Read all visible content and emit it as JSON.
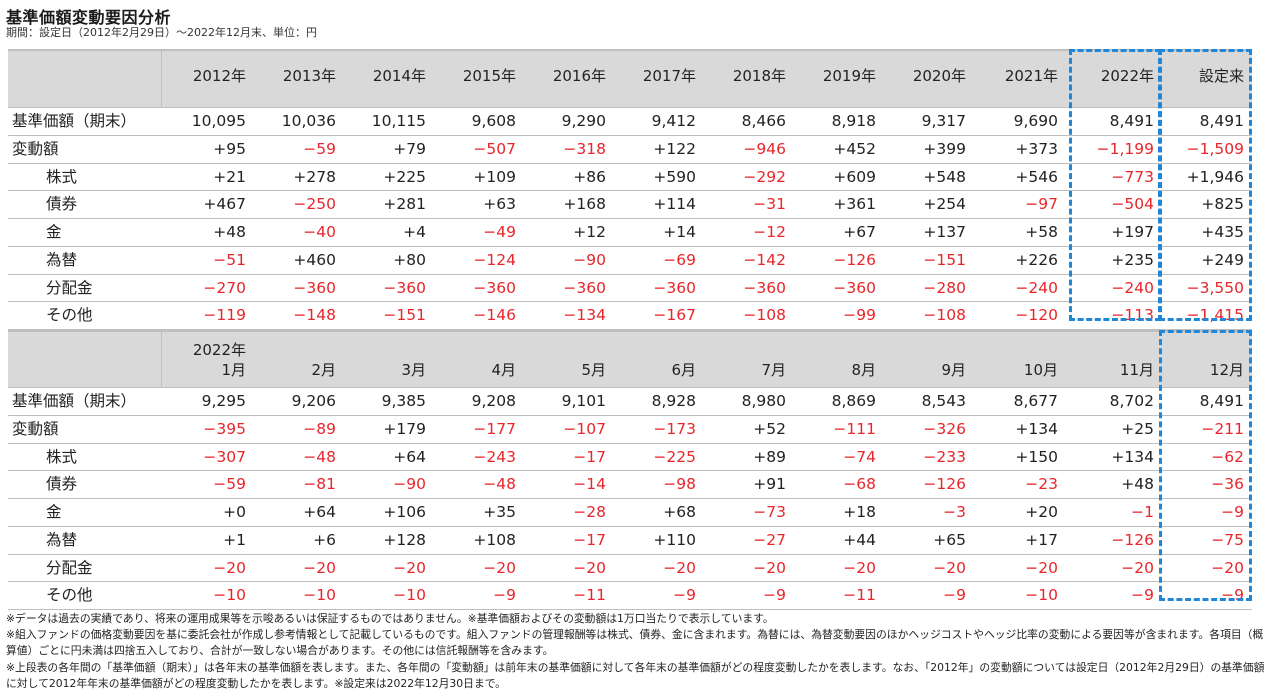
{
  "title": "基準価額変動要因分析",
  "subtitle": "期間：設定日（2012年2月29日）〜2022年12月末、単位：円",
  "annual": {
    "columns": [
      "2012年",
      "2013年",
      "2014年",
      "2015年",
      "2016年",
      "2017年",
      "2018年",
      "2019年",
      "2020年",
      "2021年",
      "2022年",
      "設定来"
    ],
    "rows": [
      {
        "label": "基準価額（期末）",
        "indent": false,
        "values": [
          "10,095",
          "10,036",
          "10,115",
          "9,608",
          "9,290",
          "9,412",
          "8,466",
          "8,918",
          "9,317",
          "9,690",
          "8,491",
          "8,491"
        ]
      },
      {
        "label": "変動額",
        "indent": false,
        "values": [
          "+95",
          "−59",
          "+79",
          "−507",
          "−318",
          "+122",
          "−946",
          "+452",
          "+399",
          "+373",
          "−1,199",
          "−1,509"
        ]
      },
      {
        "label": "株式",
        "indent": true,
        "values": [
          "+21",
          "+278",
          "+225",
          "+109",
          "+86",
          "+590",
          "−292",
          "+609",
          "+548",
          "+546",
          "−773",
          "+1,946"
        ]
      },
      {
        "label": "債券",
        "indent": true,
        "values": [
          "+467",
          "−250",
          "+281",
          "+63",
          "+168",
          "+114",
          "−31",
          "+361",
          "+254",
          "−97",
          "−504",
          "+825"
        ]
      },
      {
        "label": "金",
        "indent": true,
        "values": [
          "+48",
          "−40",
          "+4",
          "−49",
          "+12",
          "+14",
          "−12",
          "+67",
          "+137",
          "+58",
          "+197",
          "+435"
        ]
      },
      {
        "label": "為替",
        "indent": true,
        "values": [
          "−51",
          "+460",
          "+80",
          "−124",
          "−90",
          "−69",
          "−142",
          "−126",
          "−151",
          "+226",
          "+235",
          "+249"
        ]
      },
      {
        "label": "分配金",
        "indent": true,
        "values": [
          "−270",
          "−360",
          "−360",
          "−360",
          "−360",
          "−360",
          "−360",
          "−360",
          "−280",
          "−240",
          "−240",
          "−3,550"
        ]
      },
      {
        "label": "その他",
        "indent": true,
        "values": [
          "−119",
          "−148",
          "−151",
          "−146",
          "−134",
          "−167",
          "−108",
          "−99",
          "−108",
          "−120",
          "−113",
          "−1,415"
        ]
      }
    ]
  },
  "monthly": {
    "year_label": "2022年",
    "columns": [
      "1月",
      "2月",
      "3月",
      "4月",
      "5月",
      "6月",
      "7月",
      "8月",
      "9月",
      "10月",
      "11月",
      "12月"
    ],
    "rows": [
      {
        "label": "基準価額（期末）",
        "indent": false,
        "values": [
          "9,295",
          "9,206",
          "9,385",
          "9,208",
          "9,101",
          "8,928",
          "8,980",
          "8,869",
          "8,543",
          "8,677",
          "8,702",
          "8,491"
        ]
      },
      {
        "label": "変動額",
        "indent": false,
        "values": [
          "−395",
          "−89",
          "+179",
          "−177",
          "−107",
          "−173",
          "+52",
          "−111",
          "−326",
          "+134",
          "+25",
          "−211"
        ]
      },
      {
        "label": "株式",
        "indent": true,
        "values": [
          "−307",
          "−48",
          "+64",
          "−243",
          "−17",
          "−225",
          "+89",
          "−74",
          "−233",
          "+150",
          "+134",
          "−62"
        ]
      },
      {
        "label": "債券",
        "indent": true,
        "values": [
          "−59",
          "−81",
          "−90",
          "−48",
          "−14",
          "−98",
          "+91",
          "−68",
          "−126",
          "−23",
          "+48",
          "−36"
        ]
      },
      {
        "label": "金",
        "indent": true,
        "values": [
          "+0",
          "+64",
          "+106",
          "+35",
          "−28",
          "+68",
          "−73",
          "+18",
          "−3",
          "+20",
          "−1",
          "−9"
        ]
      },
      {
        "label": "為替",
        "indent": true,
        "values": [
          "+1",
          "+6",
          "+128",
          "+108",
          "−17",
          "+110",
          "−27",
          "+44",
          "+65",
          "+17",
          "−126",
          "−75"
        ]
      },
      {
        "label": "分配金",
        "indent": true,
        "values": [
          "−20",
          "−20",
          "−20",
          "−20",
          "−20",
          "−20",
          "−20",
          "−20",
          "−20",
          "−20",
          "−20",
          "−20"
        ]
      },
      {
        "label": "その他",
        "indent": true,
        "values": [
          "−10",
          "−10",
          "−10",
          "−9",
          "−11",
          "−9",
          "−9",
          "−11",
          "−9",
          "−10",
          "−9",
          "−9"
        ]
      }
    ]
  },
  "notes": [
    "※データは過去の実績であり、将来の運用成果等を示唆あるいは保証するものではありません。※基準価額およびその変動額は1万口当たりで表示しています。",
    "※組入ファンドの価格変動要因を基に委託会社が作成し参考情報として記載しているものです。組入ファンドの管理報酬等は株式、債券、金に含まれます。為替には、為替変動要因のほかヘッジコストやヘッジ比率の変動による要因等が含まれます。各項目（概算値）ごとに円未満は四捨五入しており、合計が一致しない場合があります。その他には信託報酬等を含みます。",
    "※上段表の各年間の「基準価額（期末）」は各年末の基準価額を表します。また、各年間の「変動額」は前年末の基準価額に対して各年末の基準価額がどの程度変動したかを表します。なお、「2012年」の変動額については設定日（2012年2月29日）の基準価額に対して2012年年末の基準価額がどの程度変動したかを表します。※設定来は2022年12月30日まで。"
  ],
  "colors": {
    "negative": "#e8262b",
    "positive": "#222222",
    "highlight": "#1f86d8",
    "header_bg": "#d9d9d9"
  }
}
